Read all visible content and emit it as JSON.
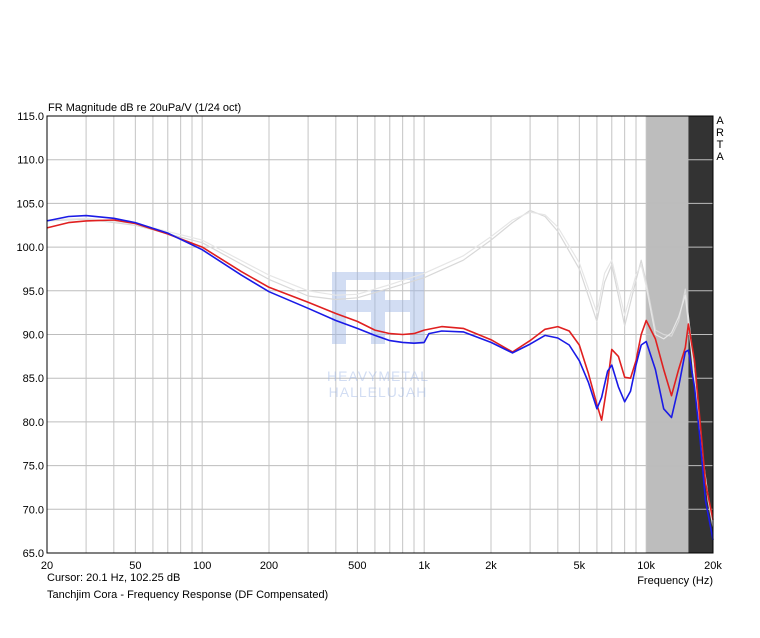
{
  "chart_data": {
    "type": "line",
    "title": "FR Magnitude dB re 20uPa/V (1/24 oct)",
    "xlabel": "Frequency (Hz)",
    "ylabel": "",
    "x_scale": "log",
    "xlim": [
      20,
      20000
    ],
    "ylim": [
      65,
      115
    ],
    "grid": true,
    "x_tick_labels": [
      "20",
      "50",
      "100",
      "200",
      "500",
      "1k",
      "2k",
      "5k",
      "10k",
      "20k"
    ],
    "x_tick_values": [
      20,
      50,
      100,
      200,
      500,
      1000,
      2000,
      5000,
      10000,
      20000
    ],
    "y_tick_labels": [
      "65.0",
      "70.0",
      "75.0",
      "80.0",
      "85.0",
      "90.0",
      "95.0",
      "100.0",
      "105.0",
      "110.0",
      "115.0"
    ],
    "y_tick_values": [
      65,
      70,
      75,
      80,
      85,
      90,
      95,
      100,
      105,
      110,
      115
    ],
    "side_label": "ARTA",
    "watermark": [
      "HEAVYMETAL",
      "HALLELUJAH"
    ],
    "shaded_regions": [
      {
        "x": [
          10000,
          15500
        ],
        "color": "#bdbdbd"
      },
      {
        "x": [
          15500,
          20000
        ],
        "color": "#333333"
      }
    ],
    "series": [
      {
        "color": "#d8d8d8",
        "x": [
          20,
          30,
          50,
          100,
          200,
          300,
          400,
          500,
          700,
          1000,
          1500,
          2000,
          2500,
          3000,
          3500,
          4000,
          5000,
          6000,
          6500,
          7000,
          8000,
          9000,
          9500,
          10000,
          11000,
          12000,
          13000,
          14000,
          15000,
          16000,
          17000,
          18000,
          19000,
          20000
        ],
        "y": [
          103.0,
          103.2,
          102.5,
          100.5,
          96.3,
          94.4,
          94.0,
          94.2,
          95.3,
          96.5,
          98.5,
          100.8,
          102.8,
          104.2,
          103.5,
          101.8,
          97.5,
          91.5,
          96.0,
          98.0,
          91.0,
          96.2,
          98.5,
          96.0,
          90.5,
          90.0,
          89.8,
          91.5,
          95.2,
          89.0,
          82.0,
          76.0,
          71.0,
          68.0
        ]
      },
      {
        "color": "#e6e6e6",
        "x": [
          20,
          30,
          50,
          100,
          200,
          300,
          400,
          500,
          700,
          1000,
          1500,
          2000,
          2500,
          3000,
          3500,
          4000,
          5000,
          6000,
          6500,
          7000,
          8000,
          9000,
          9500,
          10000,
          11000,
          12000,
          13000,
          14000,
          15000,
          16000,
          17000,
          18000,
          19000,
          20000
        ],
        "y": [
          103.1,
          103.3,
          102.7,
          100.8,
          96.8,
          95.0,
          94.5,
          94.6,
          95.7,
          97.0,
          99.0,
          101.2,
          103.1,
          104.0,
          103.7,
          102.3,
          98.2,
          92.5,
          97.0,
          98.5,
          92.2,
          96.8,
          98.0,
          95.5,
          90.0,
          89.5,
          90.2,
          92.0,
          94.5,
          88.0,
          81.5,
          76.0,
          71.5,
          68.5
        ]
      },
      {
        "color": "#e02020",
        "x": [
          20,
          25,
          30,
          40,
          50,
          70,
          100,
          150,
          200,
          300,
          400,
          500,
          600,
          700,
          800,
          900,
          1000,
          1200,
          1500,
          2000,
          2500,
          3000,
          3500,
          4000,
          4500,
          5000,
          5500,
          6000,
          6300,
          6700,
          7000,
          7500,
          8000,
          8500,
          9000,
          9500,
          10000,
          11000,
          12000,
          13000,
          14000,
          15000,
          15500,
          16500,
          17500,
          18500,
          20000
        ],
        "y": [
          102.2,
          102.8,
          103.0,
          103.1,
          102.7,
          101.5,
          100.0,
          97.2,
          95.4,
          93.7,
          92.4,
          91.5,
          90.5,
          90.1,
          90.0,
          90.1,
          90.5,
          90.9,
          90.7,
          89.4,
          88.0,
          89.3,
          90.6,
          90.9,
          90.4,
          88.8,
          85.5,
          82.0,
          80.2,
          84.5,
          88.3,
          87.5,
          85.1,
          85.0,
          87.0,
          90.0,
          91.6,
          89.5,
          86.0,
          83.0,
          86.0,
          88.5,
          91.2,
          87.0,
          80.0,
          73.0,
          68.8
        ]
      },
      {
        "color": "#1a1ae6",
        "x": [
          20,
          25,
          30,
          40,
          50,
          70,
          100,
          150,
          200,
          300,
          400,
          500,
          600,
          700,
          800,
          900,
          1000,
          1050,
          1200,
          1500,
          2000,
          2500,
          3000,
          3500,
          4000,
          4500,
          5000,
          5500,
          6000,
          6300,
          6700,
          7000,
          7500,
          8000,
          8500,
          9000,
          9500,
          10000,
          11000,
          12000,
          13000,
          14000,
          15000,
          15500,
          16500,
          17500,
          18500,
          20000
        ],
        "y": [
          103.0,
          103.5,
          103.6,
          103.3,
          102.8,
          101.6,
          99.7,
          96.8,
          94.9,
          93.0,
          91.6,
          90.7,
          89.9,
          89.3,
          89.1,
          89.0,
          89.1,
          90.1,
          90.4,
          90.3,
          89.1,
          87.9,
          88.9,
          89.9,
          89.6,
          88.8,
          87.0,
          84.5,
          81.5,
          82.8,
          85.8,
          86.5,
          84.0,
          82.3,
          83.5,
          86.5,
          88.8,
          89.2,
          86.0,
          81.5,
          80.5,
          84.0,
          88.0,
          88.2,
          84.0,
          78.0,
          71.0,
          66.5
        ]
      }
    ]
  },
  "footer": {
    "cursor": "Cursor: 20.1 Hz, 102.25 dB",
    "description": "Tanchjim Cora - Frequency Response (DF Compensated)"
  }
}
